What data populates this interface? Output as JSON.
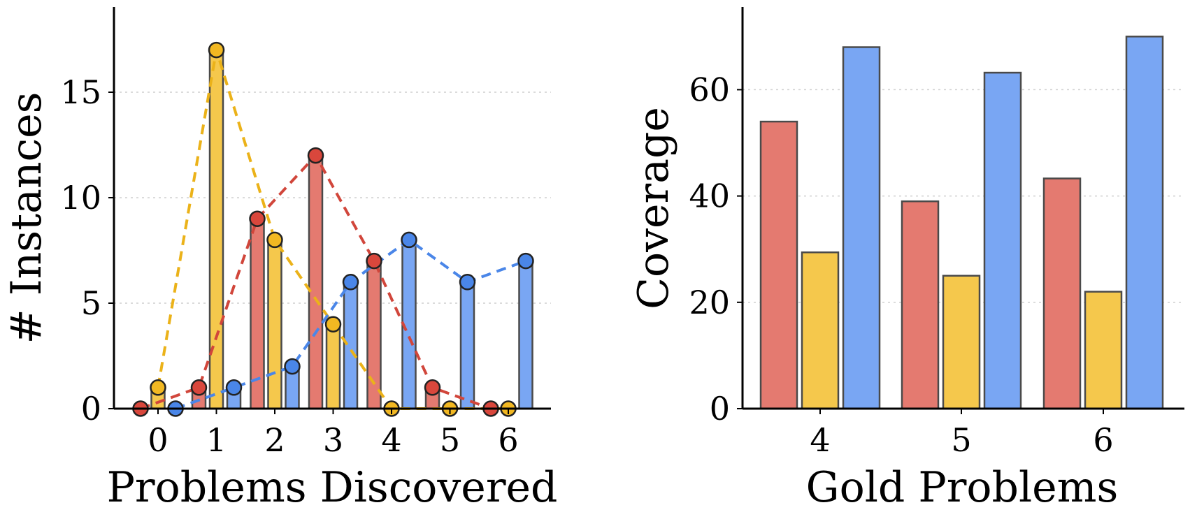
{
  "chart_data": [
    {
      "type": "bar",
      "xlabel": "Problems Discovered",
      "ylabel": "# Instances",
      "x": [
        0,
        1,
        2,
        3,
        4,
        5,
        6
      ],
      "ylim": [
        0,
        19
      ],
      "yticks": [
        0,
        5,
        10,
        15
      ],
      "grid": true,
      "series": [
        {
          "color": "#e47a70",
          "marker_color": "#d9473c",
          "line_color": "#d1463b",
          "values": [
            0,
            1,
            9,
            12,
            7,
            1,
            0
          ]
        },
        {
          "color": "#f5c84c",
          "marker_color": "#f2b822",
          "line_color": "#ebb219",
          "values": [
            1,
            17,
            8,
            4,
            0,
            0,
            0
          ]
        },
        {
          "color": "#79a6f3",
          "marker_color": "#4a86e8",
          "line_color": "#4a86e8",
          "values": [
            0,
            1,
            2,
            6,
            8,
            6,
            7
          ]
        }
      ],
      "overlay": "dashed line with circle markers per series"
    },
    {
      "type": "bar",
      "xlabel": "Gold Problems",
      "ylabel": "Coverage",
      "categories": [
        "4",
        "5",
        "6"
      ],
      "ylim": [
        0,
        75
      ],
      "yticks": [
        0,
        20,
        40,
        60
      ],
      "grid": true,
      "series": [
        {
          "color": "#e47a70",
          "values": [
            54,
            39,
            43.3
          ]
        },
        {
          "color": "#f5c84c",
          "values": [
            29.4,
            25,
            22
          ]
        },
        {
          "color": "#79a6f3",
          "values": [
            68,
            63.2,
            70
          ]
        }
      ]
    }
  ]
}
